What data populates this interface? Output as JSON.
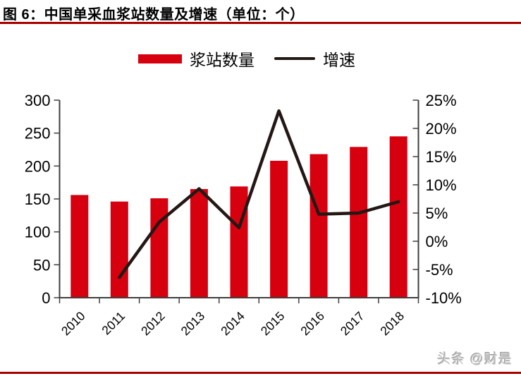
{
  "header": {
    "title": "图 6：中国单采血浆站数量及增速（单位：个）"
  },
  "watermark": {
    "text": "头条 @财是"
  },
  "colors": {
    "bar": "#d7000f",
    "line": "#231815",
    "accent_rule": "#a60000",
    "axis": "#3f3f3f",
    "text": "#000000",
    "watermark": "#cccccc"
  },
  "chart_data": {
    "type": "bar",
    "combo": "bar+line dual-axis",
    "title": "图 6：中国单采血浆站数量及增速（单位：个）",
    "categories": [
      "2010",
      "2011",
      "2012",
      "2013",
      "2014",
      "2015",
      "2016",
      "2017",
      "2018"
    ],
    "series": [
      {
        "name": "浆站数量",
        "type": "bar",
        "axis": "left",
        "color": "#d7000f",
        "values": [
          156,
          146,
          151,
          165,
          169,
          208,
          218,
          229,
          245
        ]
      },
      {
        "name": "增速",
        "type": "line",
        "axis": "right",
        "color": "#231815",
        "unit": "%",
        "values": [
          null,
          -6.4,
          3.4,
          9.3,
          2.4,
          23.1,
          4.8,
          5.0,
          7.0
        ]
      }
    ],
    "left_axis": {
      "min": 0,
      "max": 300,
      "step": 50,
      "tick_labels": [
        "300",
        "250",
        "200",
        "150",
        "100",
        "50",
        "0"
      ]
    },
    "right_axis": {
      "min": -10,
      "max": 25,
      "step": 5,
      "tick_labels": [
        "25%",
        "20%",
        "15%",
        "10%",
        "5%",
        "0%",
        "-5%",
        "-10%"
      ]
    },
    "grid": false,
    "legend_position": "top-center",
    "x_tick_rotation": -45
  }
}
